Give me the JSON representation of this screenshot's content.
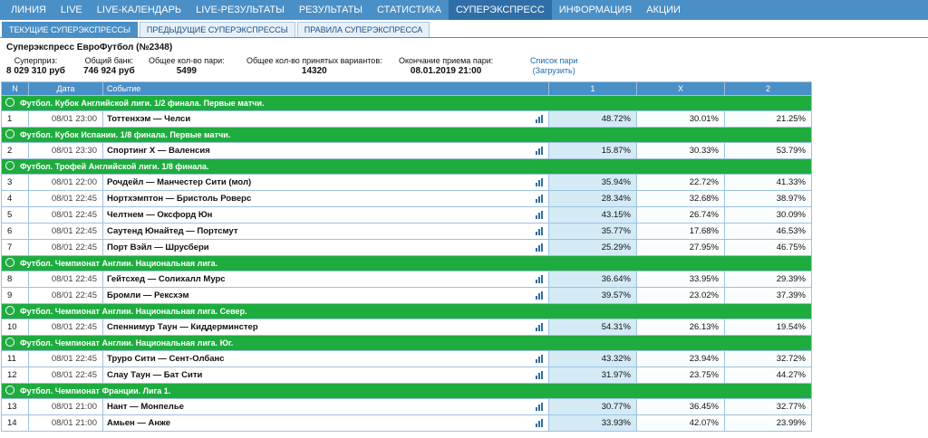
{
  "nav": [
    "ЛИНИЯ",
    "LIVE",
    "LIVE-КАЛЕНДАРЬ",
    "LIVE-РЕЗУЛЬТАТЫ",
    "РЕЗУЛЬТАТЫ",
    "СТАТИСТИКА",
    "СУПЕРЭКСПРЕСС",
    "ИНФОРМАЦИЯ",
    "АКЦИИ"
  ],
  "nav_active": 6,
  "subtabs": [
    "ТЕКУЩИЕ СУПЕРЭКСПРЕССЫ",
    "ПРЕДЫДУЩИЕ СУПЕРЭКСПРЕССЫ",
    "ПРАВИЛА СУПЕРЭКСПРЕССА"
  ],
  "subtab_active": 0,
  "title": "Суперэкспресс ЕвроФутбол (№2348)",
  "stats": {
    "superprize_label": "Суперприз:",
    "superprize_value": "8 029 310 руб",
    "bank_label": "Общий банк:",
    "bank_value": "746 924 руб",
    "bets_label": "Общее кол-во пари:",
    "bets_value": "5499",
    "variants_label": "Общее кол-во принятых вариантов:",
    "variants_value": "14320",
    "end_label": "Окончание приема пари:",
    "end_value": "08.01.2019 21:00",
    "parlist_label": "Список пари",
    "parlist_link": "(Загрузить)"
  },
  "table": {
    "headers": {
      "num": "N",
      "date": "Дата",
      "event": "Событие",
      "p1": "1",
      "px": "X",
      "p2": "2"
    },
    "groups": [
      {
        "league": "Футбол. Кубок Английской лиги. 1/2 финала. Первые матчи.",
        "rows": [
          {
            "n": "1",
            "date": "08/01 23:00",
            "event": "Тоттенхэм — Челси",
            "p1": "48.72%",
            "px": "30.01%",
            "p2": "21.25%"
          }
        ]
      },
      {
        "league": "Футбол. Кубок Испании. 1/8 финала. Первые матчи.",
        "rows": [
          {
            "n": "2",
            "date": "08/01 23:30",
            "event": "Спортинг Х — Валенсия",
            "p1": "15.87%",
            "px": "30.33%",
            "p2": "53.79%"
          }
        ]
      },
      {
        "league": "Футбол. Трофей Английской лиги. 1/8 финала.",
        "rows": [
          {
            "n": "3",
            "date": "08/01 22:00",
            "event": "Рочдейл — Манчестер Сити (мол)",
            "p1": "35.94%",
            "px": "22.72%",
            "p2": "41.33%"
          },
          {
            "n": "4",
            "date": "08/01 22:45",
            "event": "Нортхэмптон — Бристоль Роверс",
            "p1": "28.34%",
            "px": "32.68%",
            "p2": "38.97%"
          },
          {
            "n": "5",
            "date": "08/01 22:45",
            "event": "Челтнем — Оксфорд Юн",
            "p1": "43.15%",
            "px": "26.74%",
            "p2": "30.09%"
          },
          {
            "n": "6",
            "date": "08/01 22:45",
            "event": "Саутенд Юнайтед — Портсмут",
            "p1": "35.77%",
            "px": "17.68%",
            "p2": "46.53%"
          },
          {
            "n": "7",
            "date": "08/01 22:45",
            "event": "Порт Вэйл — Шрусбери",
            "p1": "25.29%",
            "px": "27.95%",
            "p2": "46.75%"
          }
        ]
      },
      {
        "league": "Футбол. Чемпионат Англии. Национальная лига.",
        "rows": [
          {
            "n": "8",
            "date": "08/01 22:45",
            "event": "Гейтсхед — Солихалл Мурс",
            "p1": "36.64%",
            "px": "33.95%",
            "p2": "29.39%"
          },
          {
            "n": "9",
            "date": "08/01 22:45",
            "event": "Бромли — Рексхэм",
            "p1": "39.57%",
            "px": "23.02%",
            "p2": "37.39%"
          }
        ]
      },
      {
        "league": "Футбол. Чемпионат Англии. Национальная лига. Север.",
        "rows": [
          {
            "n": "10",
            "date": "08/01 22:45",
            "event": "Спеннимур Таун — Киддерминстер",
            "p1": "54.31%",
            "px": "26.13%",
            "p2": "19.54%"
          }
        ]
      },
      {
        "league": "Футбол. Чемпионат Англии. Национальная лига. Юг.",
        "rows": [
          {
            "n": "11",
            "date": "08/01 22:45",
            "event": "Труро Сити — Сент-Олбанс",
            "p1": "43.32%",
            "px": "23.94%",
            "p2": "32.72%"
          },
          {
            "n": "12",
            "date": "08/01 22:45",
            "event": "Слау Таун — Бат Сити",
            "p1": "31.97%",
            "px": "23.75%",
            "p2": "44.27%"
          }
        ]
      },
      {
        "league": "Футбол. Чемпионат Франции. Лига 1.",
        "rows": [
          {
            "n": "13",
            "date": "08/01 21:00",
            "event": "Нант — Монпелье",
            "p1": "30.77%",
            "px": "36.45%",
            "p2": "32.77%"
          },
          {
            "n": "14",
            "date": "08/01 21:00",
            "event": "Амьен — Анже",
            "p1": "33.93%",
            "px": "42.07%",
            "p2": "23.99%"
          }
        ]
      }
    ]
  },
  "colors": {
    "nav_bg": "#4a8fc6",
    "league_bg": "#1fac3f",
    "p1_bg": "#d4ebf6"
  }
}
